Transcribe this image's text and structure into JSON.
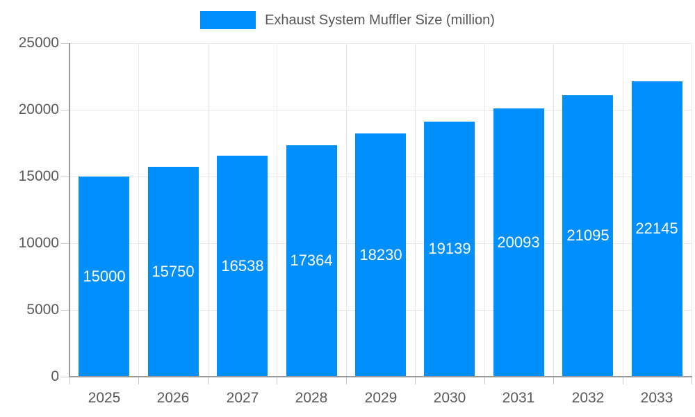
{
  "chart_data": {
    "type": "bar",
    "title": "",
    "legend": {
      "label": "Exhaust System Muffler Size (million)",
      "position": "top"
    },
    "categories": [
      "2025",
      "2026",
      "2027",
      "2028",
      "2029",
      "2030",
      "2031",
      "2032",
      "2033"
    ],
    "series": [
      {
        "name": "Exhaust System Muffler Size (million)",
        "values": [
          15000,
          15750,
          16538,
          17364,
          18230,
          19139,
          20093,
          21095,
          22145
        ]
      }
    ],
    "data_labels": [
      "15000",
      "15750",
      "16538",
      "17364",
      "18230",
      "19139",
      "20093",
      "21095",
      "22145"
    ],
    "xlabel": "",
    "ylabel": "",
    "ylim": [
      0,
      25000
    ],
    "ytick_values": [
      0,
      5000,
      10000,
      15000,
      20000,
      25000
    ],
    "ytick_labels": [
      "0",
      "5000",
      "10000",
      "15000",
      "20000",
      "25000"
    ],
    "grid": true,
    "colors": {
      "bar": "#008FFB",
      "data_label": "#ffffff",
      "gridline": "#e7e7e7",
      "axis_line": "#9a9a9a",
      "tick_label": "#595959",
      "legend_text": "#565656"
    }
  }
}
